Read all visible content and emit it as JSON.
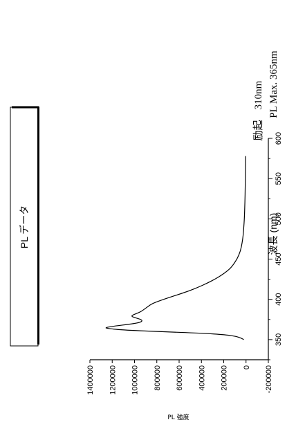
{
  "chart_data": {
    "type": "line",
    "title": "PL データ",
    "xlabel": "波長 (nm)",
    "ylabel": "PL 強度",
    "xlim": [
      325,
      600
    ],
    "ylim": [
      -200000,
      1400000
    ],
    "x_ticks": [
      350,
      400,
      450,
      500,
      550,
      600
    ],
    "y_ticks": [
      -200000,
      0,
      200000,
      400000,
      600000,
      800000,
      1000000,
      1200000,
      1400000
    ],
    "series": [
      {
        "x": [
          350,
          352,
          354,
          356,
          358,
          360,
          362,
          364,
          365,
          367,
          369,
          371,
          373,
          375,
          377,
          379,
          381,
          383,
          385,
          388,
          391,
          395,
          400,
          405,
          410,
          415,
          420,
          425,
          430,
          435,
          440,
          450,
          460,
          470,
          480,
          490,
          500,
          520,
          540,
          560,
          578
        ],
        "y": [
          20000,
          45000,
          90000,
          180000,
          400000,
          780000,
          1120000,
          1250000,
          1260000,
          1170000,
          1050000,
          960000,
          930000,
          940000,
          990000,
          1030000,
          1010000,
          970000,
          940000,
          910000,
          880000,
          840000,
          740000,
          630000,
          520000,
          430000,
          350000,
          280000,
          220000,
          170000,
          130000,
          80000,
          50000,
          35000,
          25000,
          20000,
          15000,
          10000,
          7000,
          5000,
          3000
        ]
      }
    ],
    "grid": false
  },
  "annotations": {
    "excitation": "励起　310nm",
    "pl_max": "PL Max.  365nm"
  }
}
